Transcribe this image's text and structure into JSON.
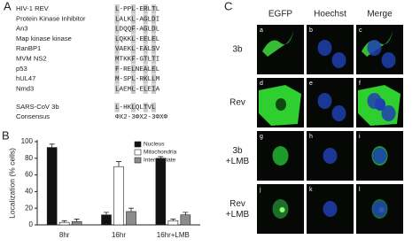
{
  "panel_labels": [
    "A",
    "B",
    "C"
  ],
  "alignment": {
    "rows": [
      {
        "name": "HIV-1 REV",
        "sequence": "L-PPL-ERLTL"
      },
      {
        "name": "Protein Kinase Inhibitor",
        "sequence": "LALKL-AGLDI"
      },
      {
        "name": "An3",
        "sequence": "LDQQF-AGLDL"
      },
      {
        "name": "Map kinase kinase",
        "sequence": "LQKKL-EELEL"
      },
      {
        "name": "RanBP1",
        "sequence": "VAEKL-EALSV"
      },
      {
        "name": "MVM NS2",
        "sequence": "MTKKF-GTLTI"
      },
      {
        "name": "p53",
        "sequence": "F-RELNEALEL"
      },
      {
        "name": "hUL47",
        "sequence": "M-SPL-RKLLM"
      },
      {
        "name": "Nmd3",
        "sequence": "LAEML-ELEIA"
      }
    ],
    "query": {
      "name": "SARS-CoV 3b",
      "sequence": "L-HKLQLTVL"
    },
    "consensus": {
      "name": "Consensus",
      "sequence": "ΦX2-3ΦX2-3ΦXΦ"
    }
  },
  "chart_data": {
    "type": "bar",
    "ylabel": "Localization (% cells)",
    "categories": [
      "8hr",
      "16hr",
      "16hr+LMB"
    ],
    "series": [
      {
        "name": "Nucleus",
        "color": "#111111",
        "values": [
          93,
          12,
          80
        ],
        "errors": [
          4,
          3,
          2
        ]
      },
      {
        "name": "Mitochondria",
        "color": "#ffffff",
        "values": [
          3,
          70,
          5
        ],
        "errors": [
          2,
          6,
          2
        ]
      },
      {
        "name": "Intermediate",
        "color": "#8c8c8c",
        "values": [
          4,
          16,
          12
        ],
        "errors": [
          3,
          4,
          3
        ]
      }
    ],
    "ylim": [
      0,
      100
    ],
    "yticks": [
      0,
      20,
      40,
      60,
      80,
      100
    ],
    "legend": "upper right"
  },
  "micrographs": {
    "columns": [
      "EGFP",
      "Hoechst",
      "Merge"
    ],
    "rows": [
      "3b",
      "Rev",
      "3b +LMB",
      "Rev +LMB"
    ],
    "tile_letters": [
      "a",
      "b",
      "c",
      "d",
      "e",
      "f",
      "g",
      "h",
      "i",
      "j",
      "k",
      "l"
    ]
  }
}
